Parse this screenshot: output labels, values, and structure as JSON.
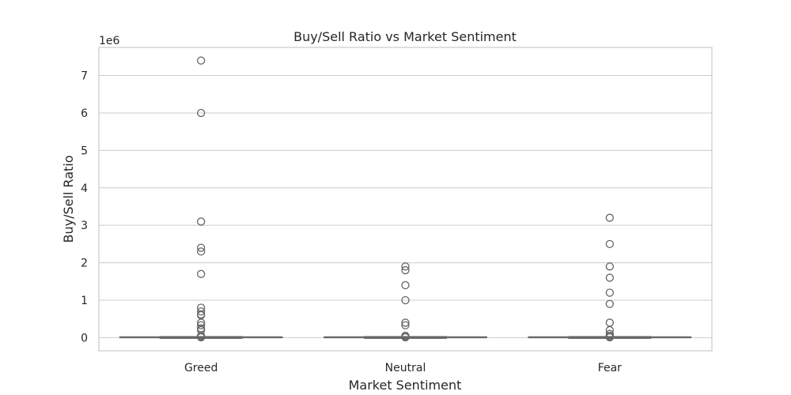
{
  "chart_data": {
    "type": "box",
    "title": "Buy/Sell Ratio vs Market Sentiment",
    "xlabel": "Market Sentiment",
    "ylabel": "Buy/Sell Ratio",
    "y_offset_label": "1e6",
    "categories": [
      "Greed",
      "Neutral",
      "Fear"
    ],
    "ylim": [
      -0.35,
      7.75
    ],
    "yticks": [
      0,
      1,
      2,
      3,
      4,
      5,
      6,
      7
    ],
    "grid": true,
    "colors": {
      "box_line": "#666666",
      "grid": "#cccccc",
      "axis": "#cccccc",
      "text": "#262626"
    },
    "boxes": [
      {
        "name": "Greed",
        "q1": 0,
        "median": 0,
        "q3": 0.01,
        "whisker_low": 0,
        "whisker_high": 0.02,
        "outliers": [
          7.4,
          6.0,
          3.1,
          2.4,
          2.3,
          1.7,
          0.8,
          0.7,
          0.62,
          0.6,
          0.4,
          0.33,
          0.25,
          0.2,
          0.05,
          0.02,
          0.01
        ]
      },
      {
        "name": "Neutral",
        "q1": 0,
        "median": 0,
        "q3": 0.01,
        "whisker_low": 0,
        "whisker_high": 0.02,
        "outliers": [
          1.9,
          1.8,
          1.4,
          1.0,
          0.4,
          0.33,
          0.05,
          0.02,
          0.01
        ]
      },
      {
        "name": "Fear",
        "q1": 0,
        "median": 0,
        "q3": 0.01,
        "whisker_low": 0,
        "whisker_high": 0.02,
        "outliers": [
          3.2,
          2.5,
          1.9,
          1.6,
          1.2,
          0.9,
          0.4,
          0.2,
          0.1,
          0.05,
          0.02,
          0.01
        ]
      }
    ]
  }
}
